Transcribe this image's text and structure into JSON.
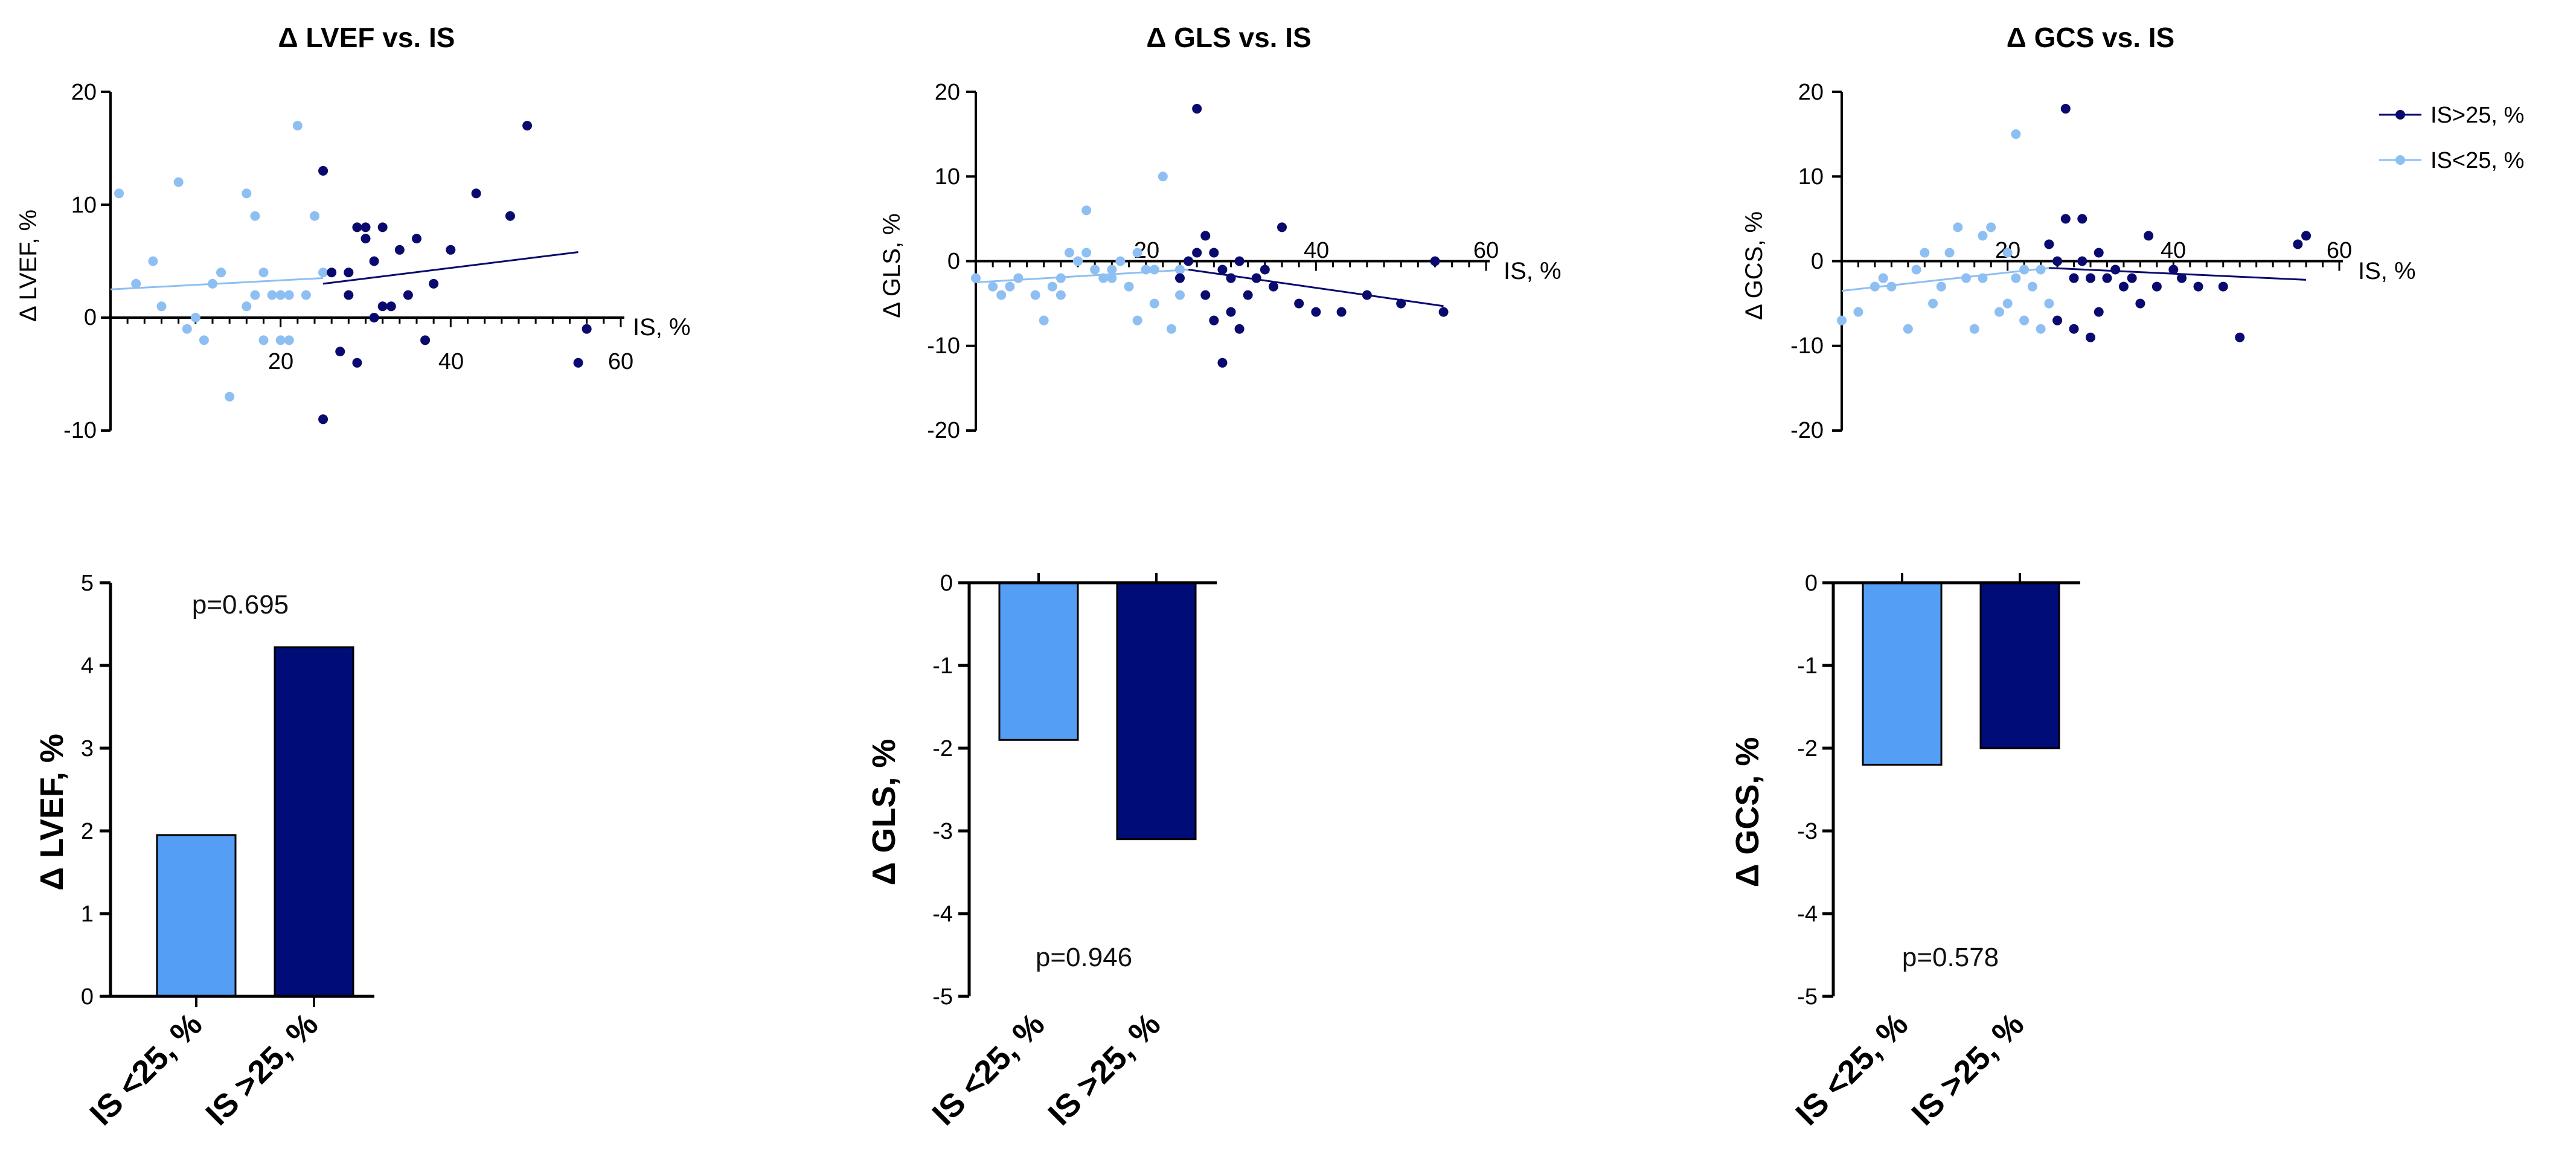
{
  "colors": {
    "dark": "#0a0a6e",
    "light": "#8ebff2",
    "bar_light": "#549ff5",
    "bar_dark": "#000c78",
    "axis": "#000000"
  },
  "legend": {
    "items": [
      {
        "label": "IS>25, %",
        "color": "#0a0a6e"
      },
      {
        "label": "IS<25, %",
        "color": "#8ebff2"
      }
    ]
  },
  "chart_data": [
    {
      "type": "scatter",
      "title": "Δ LVEF vs. IS",
      "xlabel": "IS, %",
      "ylabel": "Δ LVEF, %",
      "xlim": [
        0,
        60
      ],
      "ylim": [
        -10,
        20
      ],
      "xticks": [
        "20",
        "40",
        "60"
      ],
      "yticks": [
        "-10",
        "0",
        "10",
        "20"
      ],
      "series": [
        {
          "name": "IS<25, %",
          "color": "#8ebff2",
          "x": [
            1,
            3,
            5,
            6,
            8,
            9,
            10,
            11,
            12,
            13,
            13,
            14,
            16,
            16,
            17,
            17,
            18,
            18,
            19,
            20,
            20,
            21,
            21,
            22,
            23,
            24,
            25,
            25
          ],
          "y": [
            11,
            3,
            5,
            1,
            12,
            -1,
            0,
            -2,
            3,
            4,
            4,
            -7,
            1,
            11,
            2,
            9,
            4,
            -2,
            2,
            -2,
            2,
            2,
            -2,
            17,
            2,
            9,
            4,
            13
          ]
        },
        {
          "name": "IS>25, %",
          "color": "#0a0a6e",
          "x": [
            25,
            25,
            26,
            27,
            28,
            28,
            29,
            29,
            30,
            30,
            31,
            31,
            32,
            32,
            33,
            34,
            35,
            36,
            37,
            38,
            40,
            43,
            47,
            49,
            55,
            56
          ],
          "y": [
            13,
            -9,
            4,
            -3,
            2,
            4,
            -4,
            8,
            8,
            7,
            5,
            0,
            1,
            8,
            1,
            6,
            2,
            7,
            -2,
            3,
            6,
            11,
            9,
            17,
            -4,
            -1
          ]
        }
      ],
      "fit_lines": [
        {
          "series": "IS<25, %",
          "x": [
            0,
            25
          ],
          "y": [
            2.5,
            3.5
          ]
        },
        {
          "series": "IS>25, %",
          "x": [
            25,
            55
          ],
          "y": [
            3.0,
            5.8
          ]
        }
      ]
    },
    {
      "type": "scatter",
      "title": "Δ GLS vs. IS",
      "xlabel": "IS, %",
      "ylabel": "Δ GLS, %",
      "xlim": [
        0,
        60
      ],
      "ylim": [
        -20,
        20
      ],
      "xticks": [
        "20",
        "40",
        "60"
      ],
      "yticks": [
        "-20",
        "-10",
        "0",
        "10",
        "20"
      ],
      "series": [
        {
          "name": "IS<25, %",
          "color": "#8ebff2",
          "x": [
            0,
            2,
            3,
            4,
            5,
            7,
            8,
            9,
            10,
            10,
            11,
            12,
            12,
            13,
            13,
            14,
            15,
            16,
            16,
            17,
            18,
            19,
            19,
            20,
            21,
            21,
            22,
            23,
            24,
            24
          ],
          "y": [
            -2,
            -3,
            -4,
            -3,
            -2,
            -4,
            -7,
            -3,
            -2,
            -4,
            1,
            0,
            0,
            1,
            6,
            -1,
            -2,
            -1,
            -2,
            0,
            -3,
            1,
            -7,
            -1,
            -5,
            -1,
            10,
            -8,
            -4,
            -1
          ]
        },
        {
          "name": "IS>25, %",
          "color": "#0a0a6e",
          "x": [
            24,
            25,
            26,
            26,
            27,
            27,
            28,
            28,
            29,
            29,
            30,
            30,
            31,
            31,
            32,
            33,
            34,
            35,
            36,
            38,
            40,
            43,
            46,
            50,
            54,
            55
          ],
          "y": [
            -2,
            0,
            18,
            1,
            3,
            -4,
            -7,
            1,
            -1,
            -12,
            -2,
            -6,
            -8,
            0,
            -4,
            -2,
            -1,
            -3,
            4,
            -5,
            -6,
            -6,
            -4,
            -5,
            0,
            -6
          ]
        }
      ],
      "fit_lines": [
        {
          "series": "IS<25, %",
          "x": [
            0,
            25
          ],
          "y": [
            -2.5,
            -1.0
          ]
        },
        {
          "series": "IS>25, %",
          "x": [
            25,
            55
          ],
          "y": [
            -1.0,
            -5.3
          ]
        }
      ]
    },
    {
      "type": "scatter",
      "title": "Δ GCS vs. IS",
      "xlabel": "IS, %",
      "ylabel": "Δ GCS, %",
      "xlim": [
        0,
        60
      ],
      "ylim": [
        -20,
        20
      ],
      "xticks": [
        "20",
        "40",
        "60"
      ],
      "yticks": [
        "-20",
        "-10",
        "0",
        "10",
        "20"
      ],
      "series": [
        {
          "name": "IS<25, %",
          "color": "#8ebff2",
          "x": [
            0,
            2,
            4,
            5,
            6,
            8,
            9,
            10,
            11,
            12,
            13,
            14,
            15,
            16,
            17,
            17,
            18,
            19,
            20,
            20,
            21,
            21,
            22,
            22,
            23,
            24,
            24,
            25
          ],
          "y": [
            -7,
            -6,
            -3,
            -2,
            -3,
            -8,
            -1,
            1,
            -5,
            -3,
            1,
            4,
            -2,
            -8,
            3,
            -2,
            4,
            -6,
            -5,
            1,
            15,
            -2,
            -7,
            -1,
            -3,
            -8,
            -1,
            -5
          ]
        },
        {
          "name": "IS>25, %",
          "color": "#0a0a6e",
          "x": [
            25,
            26,
            26,
            27,
            27,
            28,
            28,
            29,
            29,
            30,
            30,
            31,
            31,
            32,
            33,
            34,
            35,
            36,
            37,
            38,
            40,
            41,
            43,
            46,
            48,
            55,
            56
          ],
          "y": [
            2,
            -7,
            0,
            18,
            5,
            -8,
            -2,
            0,
            5,
            -9,
            -2,
            1,
            -6,
            -2,
            -1,
            -3,
            -2,
            -5,
            3,
            -3,
            -1,
            -2,
            -3,
            -3,
            -9,
            2,
            3
          ]
        }
      ],
      "fit_lines": [
        {
          "series": "IS<25, %",
          "x": [
            0,
            25
          ],
          "y": [
            -3.5,
            -0.8
          ]
        },
        {
          "series": "IS>25, %",
          "x": [
            25,
            56
          ],
          "y": [
            -0.8,
            -2.2
          ]
        }
      ]
    },
    {
      "type": "bar",
      "ylabel": "Δ LVEF, %",
      "categories": [
        "IS <25, %",
        "IS >25, %"
      ],
      "values": [
        1.95,
        4.22
      ],
      "ylim": [
        0,
        5
      ],
      "yticks": [
        "0",
        "1",
        "2",
        "3",
        "4",
        "5"
      ],
      "annotation": "p=0.695",
      "annotation_pos": "top"
    },
    {
      "type": "bar",
      "ylabel": "Δ GLS, %",
      "categories": [
        "IS <25, %",
        "IS >25, %"
      ],
      "values": [
        -1.9,
        -3.1
      ],
      "ylim": [
        -5,
        0
      ],
      "yticks": [
        "-5",
        "-4",
        "-3",
        "-2",
        "-1",
        "0"
      ],
      "annotation": "p=0.946",
      "annotation_pos": "bottom"
    },
    {
      "type": "bar",
      "ylabel": "Δ GCS, %",
      "categories": [
        "IS <25, %",
        "IS >25, %"
      ],
      "values": [
        -2.2,
        -2.0
      ],
      "ylim": [
        -5,
        0
      ],
      "yticks": [
        "-5",
        "-4",
        "-3",
        "-2",
        "-1",
        "0"
      ],
      "annotation": "p=0.578",
      "annotation_pos": "bottom"
    }
  ]
}
